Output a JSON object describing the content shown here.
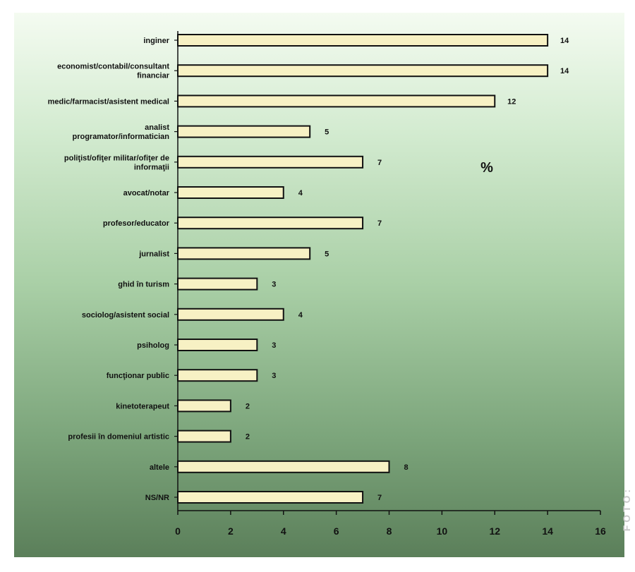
{
  "chart_data": {
    "type": "bar",
    "orientation": "horizontal",
    "categories": [
      [
        "inginer"
      ],
      [
        "economist/contabil/consultant",
        "financiar"
      ],
      [
        "medic/farmacist/asistent medical"
      ],
      [
        "analist",
        "programator/informatician"
      ],
      [
        "poliţist/ofiţer militar/ofiţer de",
        "informaţii"
      ],
      [
        "avocat/notar"
      ],
      [
        "profesor/educator"
      ],
      [
        "jurnalist"
      ],
      [
        "ghid în turism"
      ],
      [
        "sociolog/asistent social"
      ],
      [
        "psiholog"
      ],
      [
        "funcţionar public"
      ],
      [
        "kinetoterapeut"
      ],
      [
        "profesii în domeniul artistic"
      ],
      [
        "altele"
      ],
      [
        "NS/NR"
      ]
    ],
    "values": [
      14,
      14,
      12,
      5,
      7,
      4,
      7,
      5,
      3,
      4,
      3,
      3,
      2,
      2,
      8,
      7
    ],
    "xlim": [
      0,
      16
    ],
    "xticks": [
      0,
      2,
      4,
      6,
      8,
      10,
      12,
      14,
      16
    ],
    "unit_label": "%",
    "grid": false,
    "colors": {
      "bar_fill": "#f7f1c4",
      "bar_stroke": "#111111",
      "axis": "#111111"
    }
  },
  "watermark": "FOTO:"
}
